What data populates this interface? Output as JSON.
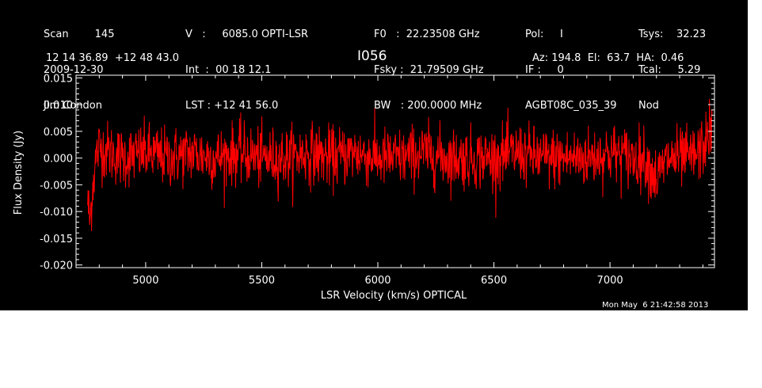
{
  "header": {
    "col1": [
      "Scan        145",
      "2009-12-30",
      "Jim Condon"
    ],
    "col2": [
      "V   :     6085.0 OPTI-LSR",
      "Int  :  00 18 12.1",
      "LST : +12 41 56.0"
    ],
    "col3": [
      "F0   :  22.23508 GHz",
      "Fsky :  21.79509 GHz",
      "BW   : 200.0000 MHz"
    ],
    "col4": [
      "Pol:     I",
      "IF :     0",
      "AGBT08C_035_39"
    ],
    "col5": [
      "Tsys:    32.23",
      "Tcal:     5.29",
      "Nod"
    ],
    "coords": "12 14 36.89  +12 48 43.0",
    "source": "I056",
    "pointing": "Az: 194.8  El:  63.7  HA:  0.46"
  },
  "footer_date": "Mon May  6 21:42:58 2013",
  "chart_data": {
    "type": "line",
    "title": "I056",
    "xlabel": "LSR Velocity (km/s) OPTICAL",
    "ylabel": "Flux Density (Jy)",
    "xlim": [
      4700,
      7450
    ],
    "ylim": [
      -0.0205,
      0.0155
    ],
    "xticks": [
      5000,
      5500,
      6000,
      6500,
      7000
    ],
    "xtick_labels": [
      "5000",
      "5500",
      "6000",
      "6500",
      "7000"
    ],
    "yticks": [
      0.015,
      0.01,
      0.005,
      0.0,
      -0.005,
      -0.01,
      -0.015,
      -0.02
    ],
    "ytick_labels": [
      "0.015",
      "0.010",
      "0.005",
      "0.000",
      "-0.005",
      "-0.010",
      "-0.015",
      "-0.020"
    ],
    "series_color": "#ff0000",
    "series": [
      {
        "x": [
          4750,
          4760,
          4770,
          4780,
          4790,
          4800,
          4850,
          4900,
          5000,
          5100,
          5200,
          5300,
          5400,
          5500,
          5600,
          5700,
          5800,
          5900,
          6000,
          6100,
          6200,
          6300,
          6400,
          6500,
          6600,
          6700,
          6800,
          6900,
          7000,
          7100,
          7150,
          7200,
          7250,
          7300,
          7350,
          7380,
          7400,
          7420,
          7440
        ],
        "values": [
          -0.008,
          -0.012,
          -0.006,
          -0.002,
          0.001,
          0.002,
          0.001,
          0.0,
          0.001,
          0.0,
          0.001,
          0.0,
          0.001,
          0.0,
          0.0,
          0.001,
          0.0,
          0.001,
          0.0,
          0.0,
          0.001,
          0.0,
          0.0,
          0.0,
          0.001,
          0.0,
          0.0,
          0.0,
          0.001,
          0.0,
          0.0,
          -0.004,
          0.0,
          0.0,
          0.0,
          0.001,
          0.002,
          0.004,
          0.006
        ],
        "noise_rms": 0.0028,
        "max": 0.012,
        "min": -0.0152
      }
    ]
  }
}
